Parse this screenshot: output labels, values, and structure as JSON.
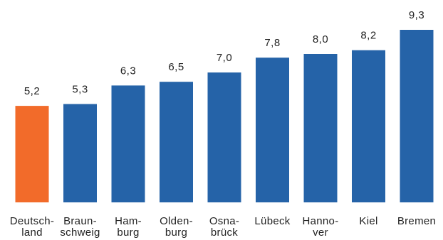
{
  "chart_data": {
    "type": "bar",
    "categories": [
      [
        "Deutsch-",
        "land"
      ],
      [
        "Braun-",
        "schweig"
      ],
      [
        "Ham-",
        "burg"
      ],
      [
        "Olden-",
        "burg"
      ],
      [
        "Osna-",
        "brück"
      ],
      [
        "Lübeck"
      ],
      [
        "Hanno-",
        "ver"
      ],
      [
        "Kiel"
      ],
      [
        "Bremen"
      ]
    ],
    "values": [
      5.2,
      5.3,
      6.3,
      6.5,
      7.0,
      7.8,
      8.0,
      8.2,
      9.3
    ],
    "value_labels": [
      "5,2",
      "5,3",
      "6,3",
      "6,5",
      "7,0",
      "7,8",
      "8,0",
      "8,2",
      "9,3"
    ],
    "bar_colors": [
      "#F26B2A",
      "#2563A8",
      "#2563A8",
      "#2563A8",
      "#2563A8",
      "#2563A8",
      "#2563A8",
      "#2563A8",
      "#2563A8"
    ],
    "ylim": [
      0,
      10
    ],
    "grid": false,
    "legend": "none",
    "title": "",
    "xlabel": "",
    "ylabel": ""
  }
}
